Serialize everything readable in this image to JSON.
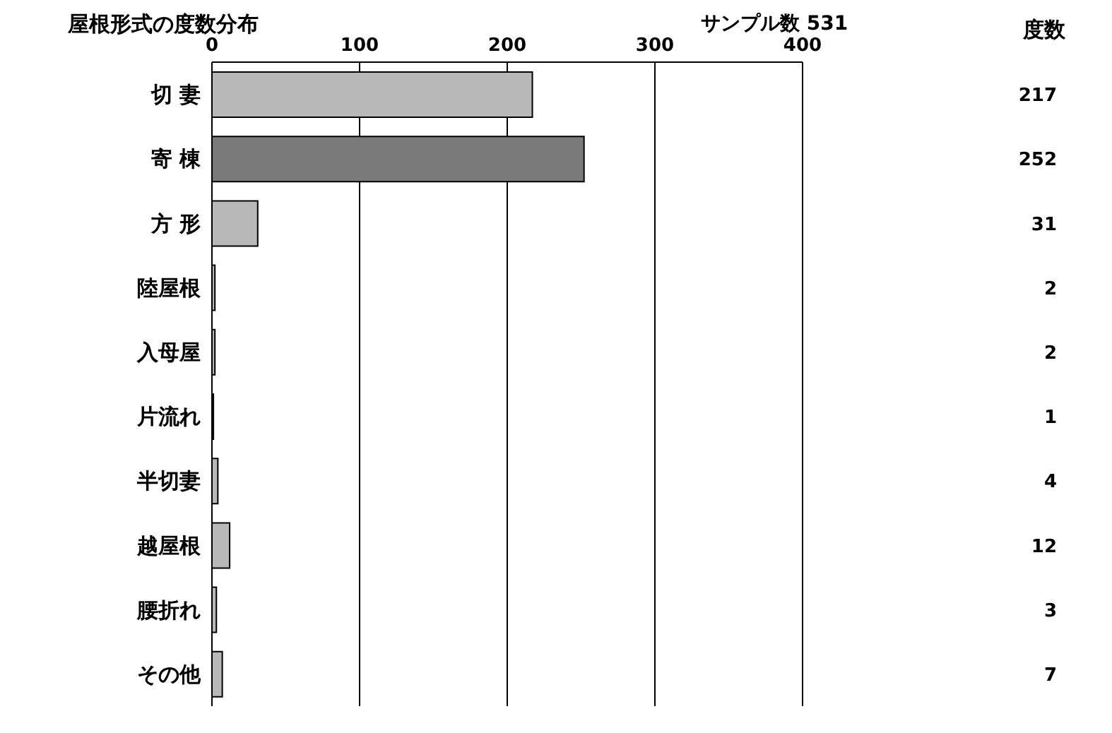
{
  "chart_data": {
    "type": "bar",
    "orientation": "horizontal",
    "title": "屋根形式の度数分布",
    "subtitle": "サンプル数 531",
    "annotations": [
      "度数"
    ],
    "categories": [
      "切 妻",
      "寄 棟",
      "方 形",
      "陸屋根",
      "入母屋",
      "片流れ",
      "半切妻",
      "越屋根",
      "腰折れ",
      "その他"
    ],
    "values": [
      217,
      252,
      31,
      2,
      2,
      1,
      4,
      12,
      3,
      7
    ],
    "colors": [
      "#b8b8b8",
      "#7a7a7a",
      "#b8b8b8",
      "#b8b8b8",
      "#b8b8b8",
      "#b8b8b8",
      "#b8b8b8",
      "#b8b8b8",
      "#b8b8b8",
      "#b8b8b8"
    ],
    "xlim": [
      0,
      400
    ],
    "xticks": [
      0,
      100,
      200,
      300,
      400
    ],
    "grid": "x",
    "data_labels": true,
    "legend": false
  }
}
